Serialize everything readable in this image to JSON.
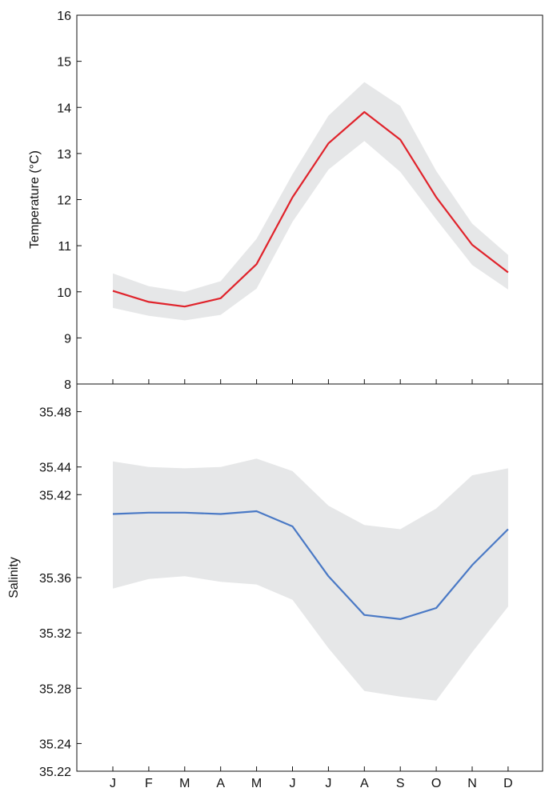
{
  "chart_data": [
    {
      "type": "line",
      "ylabel": "Temperature (°C)",
      "ylim": [
        8,
        16
      ],
      "yticks": [
        8,
        9,
        10,
        11,
        12,
        13,
        14,
        15,
        16
      ],
      "x": [
        "J",
        "F",
        "M",
        "A",
        "M",
        "J",
        "J",
        "A",
        "S",
        "O",
        "N",
        "D"
      ],
      "values": [
        10.02,
        9.78,
        9.68,
        9.86,
        10.6,
        12.05,
        13.22,
        13.9,
        13.3,
        12.05,
        11.02,
        10.42
      ],
      "band_upper": [
        10.4,
        10.12,
        10.0,
        10.23,
        11.15,
        12.55,
        13.82,
        14.55,
        14.03,
        12.62,
        11.48,
        10.8
      ],
      "band_lower": [
        9.65,
        9.48,
        9.38,
        9.5,
        10.07,
        11.52,
        12.65,
        13.27,
        12.6,
        11.57,
        10.58,
        10.05
      ],
      "line_color": "#e0232b",
      "band_color": "#e6e7e8",
      "grid": false
    },
    {
      "type": "line",
      "ylabel": "Salinity",
      "ylim": [
        35.22,
        35.5
      ],
      "yticks": [
        35.22,
        35.24,
        35.28,
        35.32,
        35.36,
        35.42,
        35.44,
        35.48
      ],
      "x": [
        "J",
        "F",
        "M",
        "A",
        "M",
        "J",
        "J",
        "A",
        "S",
        "O",
        "N",
        "D"
      ],
      "values": [
        35.406,
        35.407,
        35.407,
        35.406,
        35.408,
        35.397,
        35.361,
        35.333,
        35.33,
        35.338,
        35.369,
        35.395
      ],
      "band_upper": [
        35.444,
        35.44,
        35.439,
        35.44,
        35.446,
        35.437,
        35.412,
        35.398,
        35.395,
        35.41,
        35.434,
        35.439
      ],
      "band_lower": [
        35.352,
        35.359,
        35.361,
        35.357,
        35.355,
        35.344,
        35.309,
        35.278,
        35.274,
        35.271,
        35.306,
        35.339
      ],
      "line_color": "#4a79c5",
      "band_color": "#e6e7e8",
      "grid": false
    }
  ]
}
